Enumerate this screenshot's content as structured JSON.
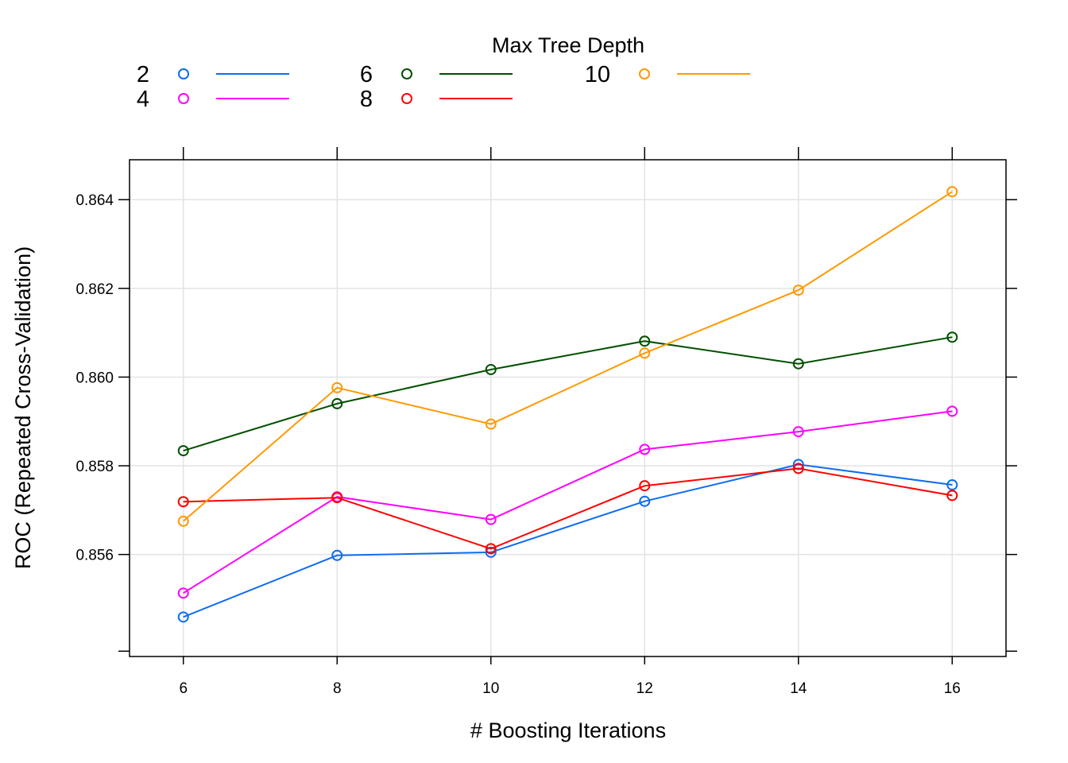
{
  "chart_data": {
    "type": "line",
    "title": "",
    "xlabel": "# Boosting Iterations",
    "ylabel": "ROC (Repeated Cross-Validation)",
    "x": [
      6,
      8,
      10,
      12,
      14,
      16
    ],
    "xticks": [
      6,
      8,
      10,
      12,
      14,
      16
    ],
    "xlim": [
      5.3,
      16.7
    ],
    "ylim": [
      0.8537,
      0.8649
    ],
    "yticks": [
      0.856,
      0.858,
      0.86,
      0.862,
      0.864
    ],
    "ytick_labels": [
      "0.856",
      "0.858",
      "0.860",
      "0.862",
      "0.864"
    ],
    "grid": true,
    "legend": {
      "title": "Max Tree Depth",
      "placement": "top"
    },
    "series": [
      {
        "name": "2",
        "color": "#0f6cf0",
        "values": [
          0.85459,
          0.85598,
          0.85605,
          0.8572,
          0.85803,
          0.85757
        ]
      },
      {
        "name": "4",
        "color": "#ff00ff",
        "values": [
          0.85513,
          0.8573,
          0.85679,
          0.85837,
          0.85877,
          0.85923
        ]
      },
      {
        "name": "6",
        "color": "#005000",
        "values": [
          0.85834,
          0.8594,
          0.86017,
          0.86081,
          0.8603,
          0.8609
        ]
      },
      {
        "name": "8",
        "color": "#ff0000",
        "values": [
          0.85719,
          0.85728,
          0.85613,
          0.85755,
          0.85794,
          0.85733
        ]
      },
      {
        "name": "10",
        "color": "#ff9900",
        "values": [
          0.85675,
          0.85976,
          0.85894,
          0.86054,
          0.86196,
          0.86418
        ]
      }
    ]
  }
}
